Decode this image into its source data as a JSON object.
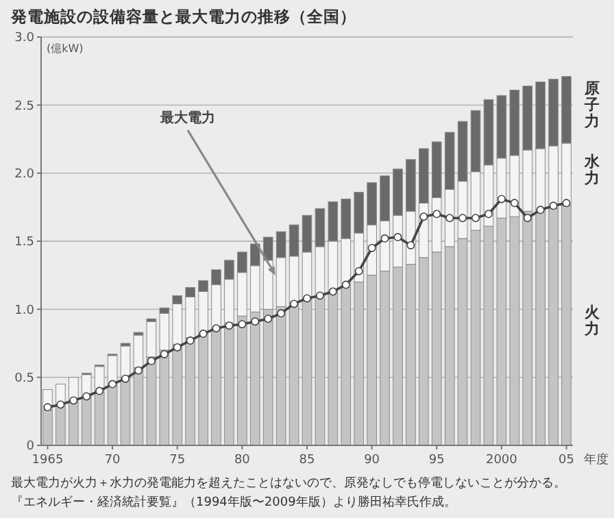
{
  "chart_data": {
    "type": "bar",
    "title": "発電施設の設備容量と最大電力の推移（全国）",
    "ylabel": "(億kW)",
    "xlabel": "年度",
    "x": [
      1965,
      1966,
      1967,
      1968,
      1969,
      1970,
      1971,
      1972,
      1973,
      1974,
      1975,
      1976,
      1977,
      1978,
      1979,
      1980,
      1981,
      1982,
      1983,
      1984,
      1985,
      1986,
      1987,
      1988,
      1989,
      1990,
      1991,
      1992,
      1993,
      1994,
      1995,
      1996,
      1997,
      1998,
      1999,
      2000,
      2001,
      2002,
      2003,
      2004,
      2005
    ],
    "stacked": true,
    "series": [
      {
        "name": "火力",
        "color": "#c4c4c4",
        "values": [
          0.26,
          0.29,
          0.32,
          0.35,
          0.39,
          0.44,
          0.5,
          0.57,
          0.65,
          0.7,
          0.74,
          0.79,
          0.82,
          0.86,
          0.9,
          0.95,
          0.98,
          1.0,
          1.02,
          1.05,
          1.08,
          1.1,
          1.13,
          1.16,
          1.2,
          1.25,
          1.28,
          1.31,
          1.33,
          1.38,
          1.42,
          1.46,
          1.52,
          1.58,
          1.61,
          1.67,
          1.68,
          1.72,
          1.73,
          1.74,
          1.76
        ]
      },
      {
        "name": "水力",
        "color": "#f4f4f4",
        "values": [
          0.15,
          0.16,
          0.18,
          0.17,
          0.19,
          0.22,
          0.23,
          0.24,
          0.26,
          0.27,
          0.3,
          0.3,
          0.31,
          0.32,
          0.32,
          0.32,
          0.34,
          0.36,
          0.36,
          0.34,
          0.34,
          0.36,
          0.37,
          0.36,
          0.36,
          0.37,
          0.37,
          0.38,
          0.39,
          0.4,
          0.4,
          0.42,
          0.42,
          0.43,
          0.45,
          0.44,
          0.45,
          0.45,
          0.45,
          0.46,
          0.46
        ]
      },
      {
        "name": "原子力",
        "color": "#6a6a6a",
        "values": [
          0,
          0,
          0,
          0.01,
          0.01,
          0.01,
          0.02,
          0.02,
          0.02,
          0.04,
          0.06,
          0.07,
          0.08,
          0.11,
          0.14,
          0.15,
          0.16,
          0.17,
          0.19,
          0.23,
          0.27,
          0.28,
          0.29,
          0.29,
          0.3,
          0.31,
          0.33,
          0.34,
          0.38,
          0.4,
          0.41,
          0.42,
          0.44,
          0.45,
          0.48,
          0.46,
          0.48,
          0.47,
          0.49,
          0.49,
          0.49
        ]
      },
      {
        "type": "line",
        "color": "#444444",
        "marker": "circle",
        "values": [
          0.28,
          0.3,
          0.33,
          0.36,
          0.4,
          0.45,
          0.49,
          0.55,
          0.62,
          0.67,
          0.72,
          0.77,
          0.82,
          0.86,
          0.88,
          0.89,
          0.91,
          0.93,
          0.97,
          1.04,
          1.08,
          1.1,
          1.13,
          1.18,
          1.28,
          1.45,
          1.52,
          1.53,
          1.47,
          1.68,
          1.7,
          1.67,
          1.67,
          1.67,
          1.7,
          1.81,
          1.78,
          1.67,
          1.73,
          1.76,
          1.78
        ]
      }
    ],
    "xlim": [
      1964.5,
      2005.5
    ],
    "xticks": [
      1965,
      {
        "value": 1970,
        "label": "70"
      },
      {
        "value": 1975,
        "label": "75"
      },
      {
        "value": 1980,
        "label": "80"
      },
      {
        "value": 1985,
        "label": "85"
      },
      {
        "value": 1990,
        "label": "90"
      },
      {
        "value": 1995,
        "label": "95"
      },
      2000,
      {
        "value": 2005,
        "label": "05"
      }
    ],
    "ylim": [
      0,
      3
    ],
    "yticks": [
      0,
      0.5,
      {
        "value": 1,
        "label": "1.0"
      },
      1.5,
      {
        "value": 2,
        "label": "2.0"
      },
      2.5,
      {
        "value": 3,
        "label": "3.0"
      }
    ],
    "grid": "y",
    "annotations": [
      "最大電力",
      "最大電力が火力＋水力の発電能力を超えたことはないので、原発なしでも停電しないことが分かる。",
      "『エネルギー・経済統計要覧』（1994年版〜2009年版）より勝田祐幸氏作成。"
    ]
  }
}
